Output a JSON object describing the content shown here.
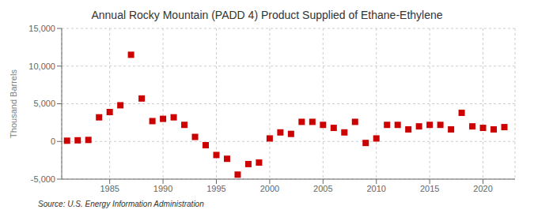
{
  "chart_data": {
    "type": "scatter",
    "title": "Annual Rocky Mountain (PADD 4) Product Supplied of Ethane-Ethylene",
    "ylabel": "Thousand Barrels",
    "annotations": [
      "Source: U.S. Energy Information Administration"
    ],
    "x": [
      1981,
      1982,
      1983,
      1984,
      1985,
      1986,
      1987,
      1988,
      1989,
      1990,
      1991,
      1992,
      1993,
      1994,
      1995,
      1996,
      1997,
      1998,
      1999,
      2000,
      2001,
      2002,
      2003,
      2004,
      2005,
      2006,
      2007,
      2008,
      2009,
      2010,
      2011,
      2012,
      2013,
      2014,
      2015,
      2016,
      2017,
      2018,
      2019,
      2020,
      2021,
      2022
    ],
    "values": [
      100,
      150,
      200,
      3200,
      3900,
      4800,
      11500,
      5700,
      2700,
      3000,
      3200,
      2200,
      600,
      -500,
      -1800,
      -2300,
      -4400,
      -3000,
      -2800,
      400,
      1200,
      1000,
      2600,
      2600,
      2200,
      1800,
      1200,
      2600,
      -200,
      400,
      2200,
      2200,
      1600,
      2000,
      2200,
      2200,
      1600,
      3800,
      2000,
      1800,
      1600,
      1900
    ],
    "color": "#cc0000",
    "marker": "square",
    "xlim": [
      1980.5,
      2023
    ],
    "xticks": [
      1985,
      1990,
      1995,
      2000,
      2005,
      2010,
      2015,
      2020
    ],
    "ylim": [
      -5000,
      15000
    ],
    "yticks": [
      {
        "value": -5000,
        "label": "-5,000"
      },
      0,
      {
        "value": 5000,
        "label": "5,000"
      },
      {
        "value": 10000,
        "label": "10,000"
      },
      {
        "value": 15000,
        "label": "15,000"
      }
    ],
    "grid": true
  }
}
